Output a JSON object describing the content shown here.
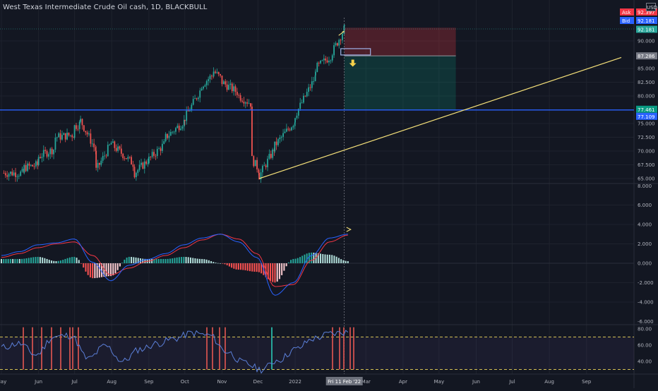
{
  "header": {
    "title": "West Texas Intermediate Crude Oil cash, 1D, BLACKBULL"
  },
  "currency": "USD",
  "price_scale": {
    "ticks": [
      "90.000",
      "85.000",
      "82.500",
      "80.000",
      "75.000",
      "72.500",
      "70.000",
      "67.500",
      "65.000"
    ],
    "ask_label": "Ask",
    "ask_value": "92.397",
    "bid_label": "Bid",
    "bid_value": "92.181",
    "last_value": "92.181",
    "target_value": "87.286",
    "line_value_1": "77.461",
    "line_value_2": "77.109"
  },
  "macd_scale": {
    "ticks": [
      "8.000",
      "6.000",
      "4.000",
      "2.000",
      "0.000",
      "-2.000",
      "-4.000",
      "-6.000"
    ]
  },
  "rsi_scale": {
    "ticks": [
      "80.00",
      "60.00",
      "40.00"
    ]
  },
  "time_axis": {
    "labels": [
      "May",
      "Jun",
      "Jul",
      "Aug",
      "Sep",
      "Oct",
      "Nov",
      "Dec",
      "2022",
      "Mar",
      "Apr",
      "May",
      "Jun",
      "Jul",
      "Aug",
      "Sep"
    ],
    "cursor_label": "Fri 11 Feb '22"
  },
  "colors": {
    "background": "#131722",
    "up": "#26a69a",
    "down": "#ef5350",
    "trendline": "#f7e27a",
    "hline": "#2962ff",
    "macd": "#2962ff",
    "signal": "#f23645",
    "rsi": "#5b7fd8"
  },
  "chart_data": [
    {
      "type": "candlestick",
      "title": "West Texas Intermediate Crude Oil cash, 1D, BLACKBULL",
      "ylim": [
        64,
        93
      ],
      "x_range": [
        "2021-05-01",
        "2022-09-30"
      ],
      "ohlc_summary": [
        [
          "2021-05-03",
          64.5,
          66.0
        ],
        [
          "2021-05-20",
          66.0,
          67.0
        ],
        [
          "2021-06-01",
          67.5,
          69.0
        ],
        [
          "2021-06-15",
          70.5,
          72.5
        ],
        [
          "2021-07-01",
          73.0,
          74.5
        ],
        [
          "2021-07-06",
          75.0,
          75.5
        ],
        [
          "2021-07-19",
          70.0,
          66.5
        ],
        [
          "2021-08-02",
          72.0,
          71.0
        ],
        [
          "2021-08-20",
          67.5,
          66.0
        ],
        [
          "2021-09-01",
          68.5,
          68.5
        ],
        [
          "2021-09-15",
          71.5,
          72.5
        ],
        [
          "2021-10-01",
          75.5,
          76.0
        ],
        [
          "2021-10-15",
          81.5,
          82.0
        ],
        [
          "2021-10-25",
          84.0,
          84.5
        ],
        [
          "2021-11-01",
          83.0,
          82.5
        ],
        [
          "2021-11-15",
          80.5,
          80.0
        ],
        [
          "2021-11-26",
          78.5,
          68.5
        ],
        [
          "2021-12-02",
          66.5,
          65.5
        ],
        [
          "2021-12-15",
          70.5,
          71.0
        ],
        [
          "2022-01-01",
          75.5,
          76.5
        ],
        [
          "2022-01-18",
          83.5,
          85.0
        ],
        [
          "2022-02-01",
          87.5,
          88.0
        ],
        [
          "2022-02-11",
          92.2,
          92.2
        ]
      ],
      "horizontal_line": 77.461,
      "trendline": [
        [
          "2021-12-02",
          65.0
        ],
        [
          "2022-09-30",
          87.0
        ]
      ],
      "position": {
        "entry": 87.286,
        "stop": 92.4,
        "target": 77.461,
        "start": "2022-02-11",
        "end": "2022-05-15"
      },
      "annotations": [
        "down arrow at 2022-02-11"
      ]
    },
    {
      "type": "line",
      "series": [
        {
          "values": [
            0.8,
            1.2,
            1.9,
            2.1,
            2.5,
            0.1,
            -1.8,
            -0.2,
            0.4,
            1.0,
            1.9,
            2.6,
            3.0,
            2.2,
            0.6,
            -3.3,
            -2.0,
            0.8,
            2.6,
            3.0
          ]
        },
        {
          "values": [
            0.6,
            1.0,
            1.6,
            2.0,
            2.2,
            0.8,
            -1.2,
            -0.5,
            0.2,
            0.8,
            1.6,
            2.4,
            3.0,
            2.5,
            1.0,
            -2.4,
            -2.2,
            0.3,
            2.2,
            2.9
          ]
        }
      ],
      "bars": "histogram of macd minus signal",
      "ylim": [
        -6,
        8
      ]
    },
    {
      "type": "line",
      "series": [
        {
          "values": [
            57,
            62,
            48,
            70,
            72,
            43,
            59,
            40,
            55,
            62,
            68,
            75,
            72,
            52,
            38,
            30,
            42,
            55,
            68,
            74,
            76
          ]
        }
      ],
      "levels": [
        70,
        30
      ],
      "ylim": [
        25,
        85
      ]
    }
  ]
}
